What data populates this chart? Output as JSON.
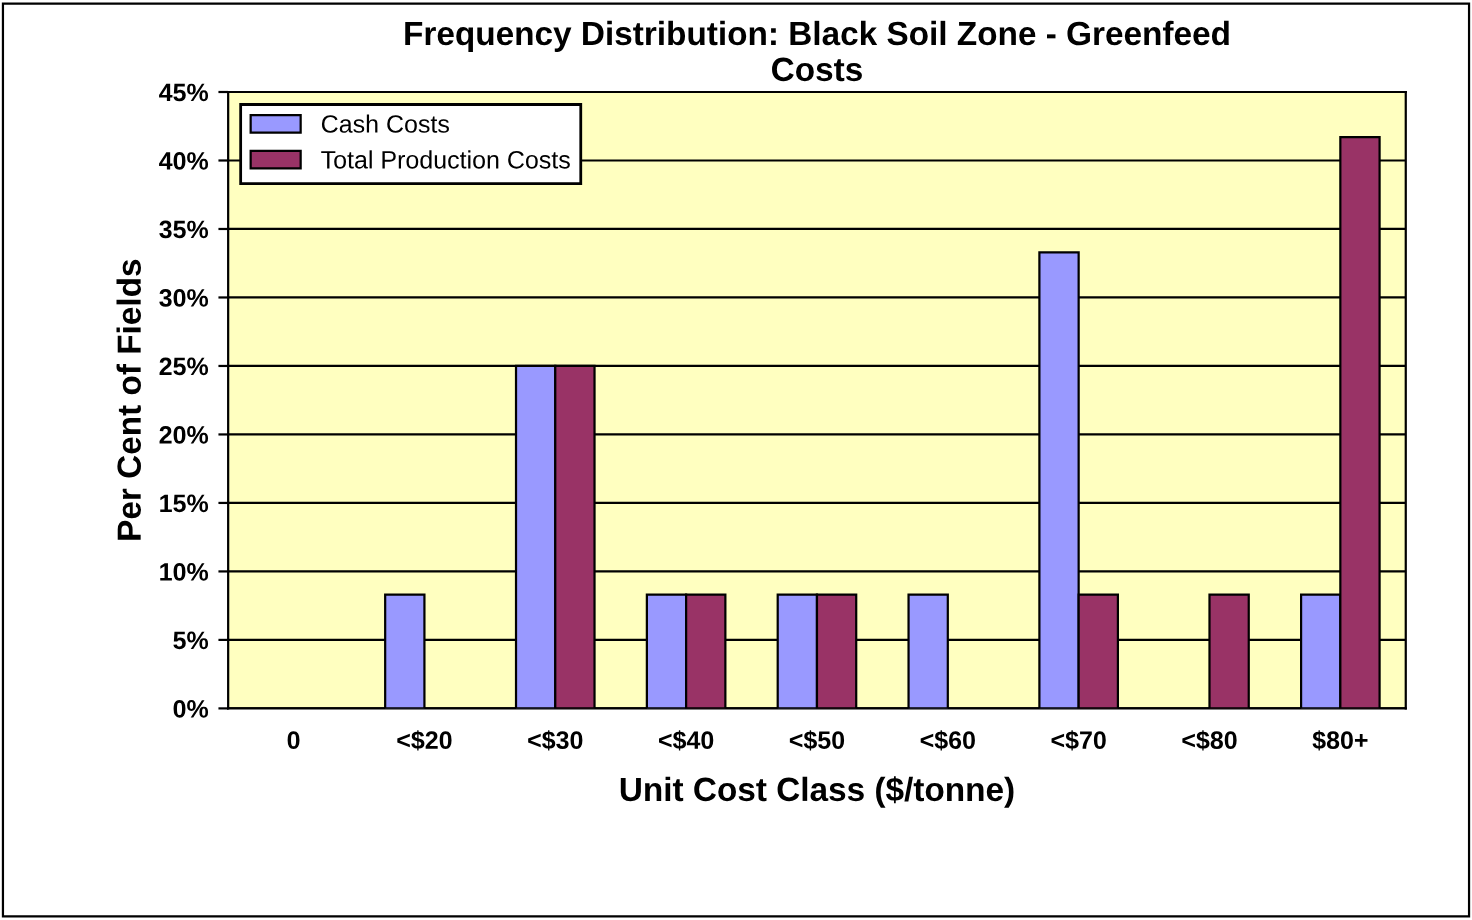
{
  "chart_data": {
    "type": "bar",
    "title": "Frequency Distribution: Black Soil Zone - Greenfeed\nCosts",
    "xlabel": "Unit Cost Class ($/tonne)",
    "ylabel": "Per Cent of Fields",
    "categories": [
      "0",
      "<$20",
      "<$30",
      "<$40",
      "<$50",
      "<$60",
      "<$70",
      "<$80",
      "$80+"
    ],
    "series": [
      {
        "name": "Cash Costs",
        "color": "#9999ff",
        "values": [
          null,
          8.3,
          25,
          8.3,
          8.3,
          8.3,
          33.3,
          null,
          8.3
        ]
      },
      {
        "name": "Total Production Costs",
        "color": "#993366",
        "values": [
          null,
          null,
          25,
          8.3,
          8.3,
          null,
          8.3,
          8.3,
          41.7
        ]
      }
    ],
    "ylim": [
      0,
      45
    ],
    "yticks": [
      {
        "value": 0,
        "label": "0%"
      },
      {
        "value": 5,
        "label": "5%"
      },
      {
        "value": 10,
        "label": "10%"
      },
      {
        "value": 15,
        "label": "15%"
      },
      {
        "value": 20,
        "label": "20%"
      },
      {
        "value": 25,
        "label": "25%"
      },
      {
        "value": 30,
        "label": "30%"
      },
      {
        "value": 35,
        "label": "35%"
      },
      {
        "value": 40,
        "label": "40%"
      },
      {
        "value": 45,
        "label": "45%"
      }
    ],
    "grid": "y",
    "legend": "top left"
  }
}
